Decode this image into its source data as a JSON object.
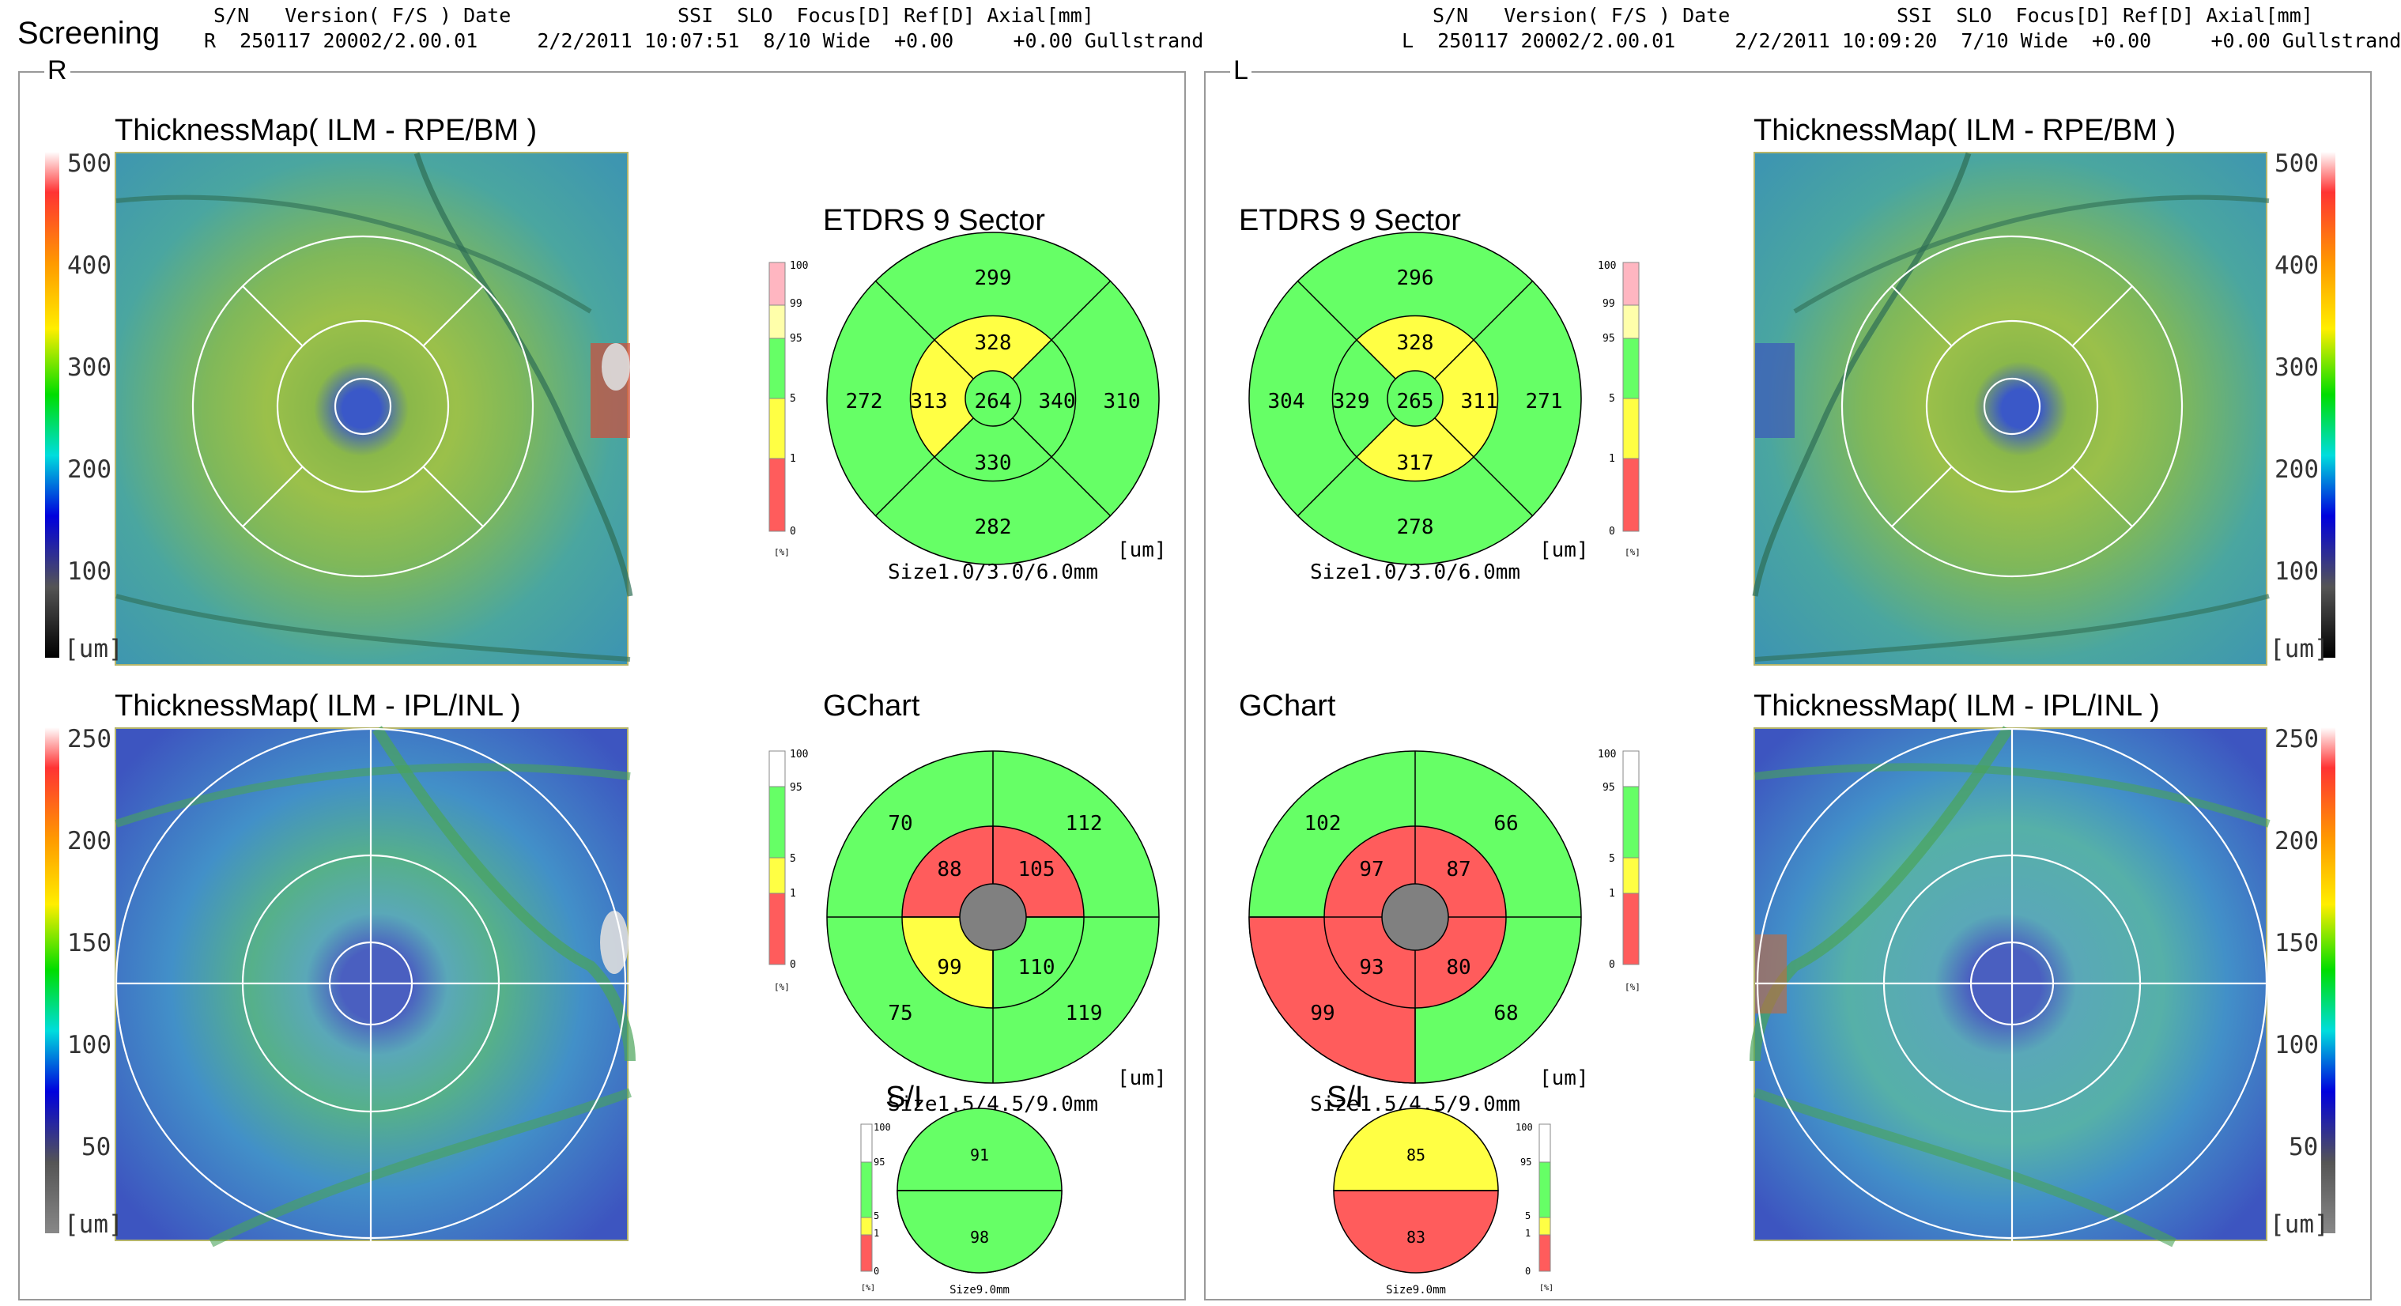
{
  "app_title": "Screening",
  "header_left": {
    "row1": "S/N   Version( F/S ) Date              SSI  SLO  Focus[D] Ref[D] Axial[mm]",
    "row2": "R  250117 20002/2.00.01     2/2/2011 10:07:51  8/10 Wide  +0.00     +0.00 Gullstrand"
  },
  "header_right": {
    "row1": "S/N   Version( F/S ) Date              SSI  SLO  Focus[D] Ref[D] Axial[mm]",
    "row2": "L  250117 20002/2.00.01     2/2/2011 10:09:20  7/10 Wide  +0.00     +0.00 Gullstrand"
  },
  "right_eye": {
    "tag": "R",
    "map_top_title": "ThicknessMap( ILM - RPE/BM )",
    "map_bottom_title": "ThicknessMap( ILM - IPL/INL )",
    "scale_top_ticks": [
      "500",
      "400",
      "300",
      "200",
      "100",
      "[um]"
    ],
    "scale_bottom_ticks": [
      "250",
      "200",
      "150",
      "100",
      "50",
      "[um]"
    ],
    "etdrs": {
      "title": "ETDRS 9 Sector",
      "center": "264",
      "inner": {
        "superior": "328",
        "nasal": "340",
        "inferior": "330",
        "temporal": "313"
      },
      "outer": {
        "superior": "299",
        "nasal": "310",
        "inferior": "282",
        "temporal": "272"
      },
      "unit": "[um]",
      "size": "Size1.0/3.0/6.0mm"
    },
    "gchart": {
      "title": "GChart",
      "inner": {
        "upper_left": "88",
        "upper_right": "105",
        "lower_left": "99",
        "lower_right": "110"
      },
      "outer": {
        "upper_left": "70",
        "upper_right": "112",
        "lower_left": "75",
        "lower_right": "119"
      },
      "unit": "[um]",
      "size": "Size1.5/4.5/9.0mm"
    },
    "si": {
      "title": "S/I",
      "superior": "91",
      "inferior": "98",
      "size": "Size9.0mm"
    }
  },
  "left_eye": {
    "tag": "L",
    "map_top_title": "ThicknessMap( ILM - RPE/BM )",
    "map_bottom_title": "ThicknessMap( ILM - IPL/INL )",
    "scale_top_ticks": [
      "500",
      "400",
      "300",
      "200",
      "100",
      "[um]"
    ],
    "scale_bottom_ticks": [
      "250",
      "200",
      "150",
      "100",
      "50",
      "[um]"
    ],
    "etdrs": {
      "title": "ETDRS 9 Sector",
      "center": "265",
      "inner": {
        "superior": "328",
        "nasal": "329",
        "inferior": "317",
        "temporal": "311"
      },
      "outer": {
        "superior": "296",
        "nasal": "304",
        "inferior": "278",
        "temporal": "271"
      },
      "unit": "[um]",
      "size": "Size1.0/3.0/6.0mm"
    },
    "gchart": {
      "title": "GChart",
      "inner": {
        "upper_left": "97",
        "upper_right": "87",
        "lower_left": "93",
        "lower_right": "80"
      },
      "outer": {
        "upper_left": "102",
        "upper_right": "66",
        "lower_left": "99",
        "lower_right": "68"
      },
      "unit": "[um]",
      "size": "Size1.5/4.5/9.0mm"
    },
    "si": {
      "title": "S/I",
      "superior": "85",
      "inferior": "83",
      "size": "Size9.0mm"
    }
  },
  "legend_scales": {
    "etdrs_ticks": [
      "100",
      "99",
      "95",
      "5",
      "1",
      "0"
    ],
    "gchart_ticks": [
      "100",
      "95",
      "5",
      "1",
      "0"
    ],
    "unit": "[%]"
  },
  "colors": {
    "normal": "#66ff66",
    "borderline": "#ffff44",
    "outside": "#ff5c5c",
    "above": "#ffb6c1",
    "supernormal": "#ffffaa",
    "center_disc": "#808080"
  }
}
